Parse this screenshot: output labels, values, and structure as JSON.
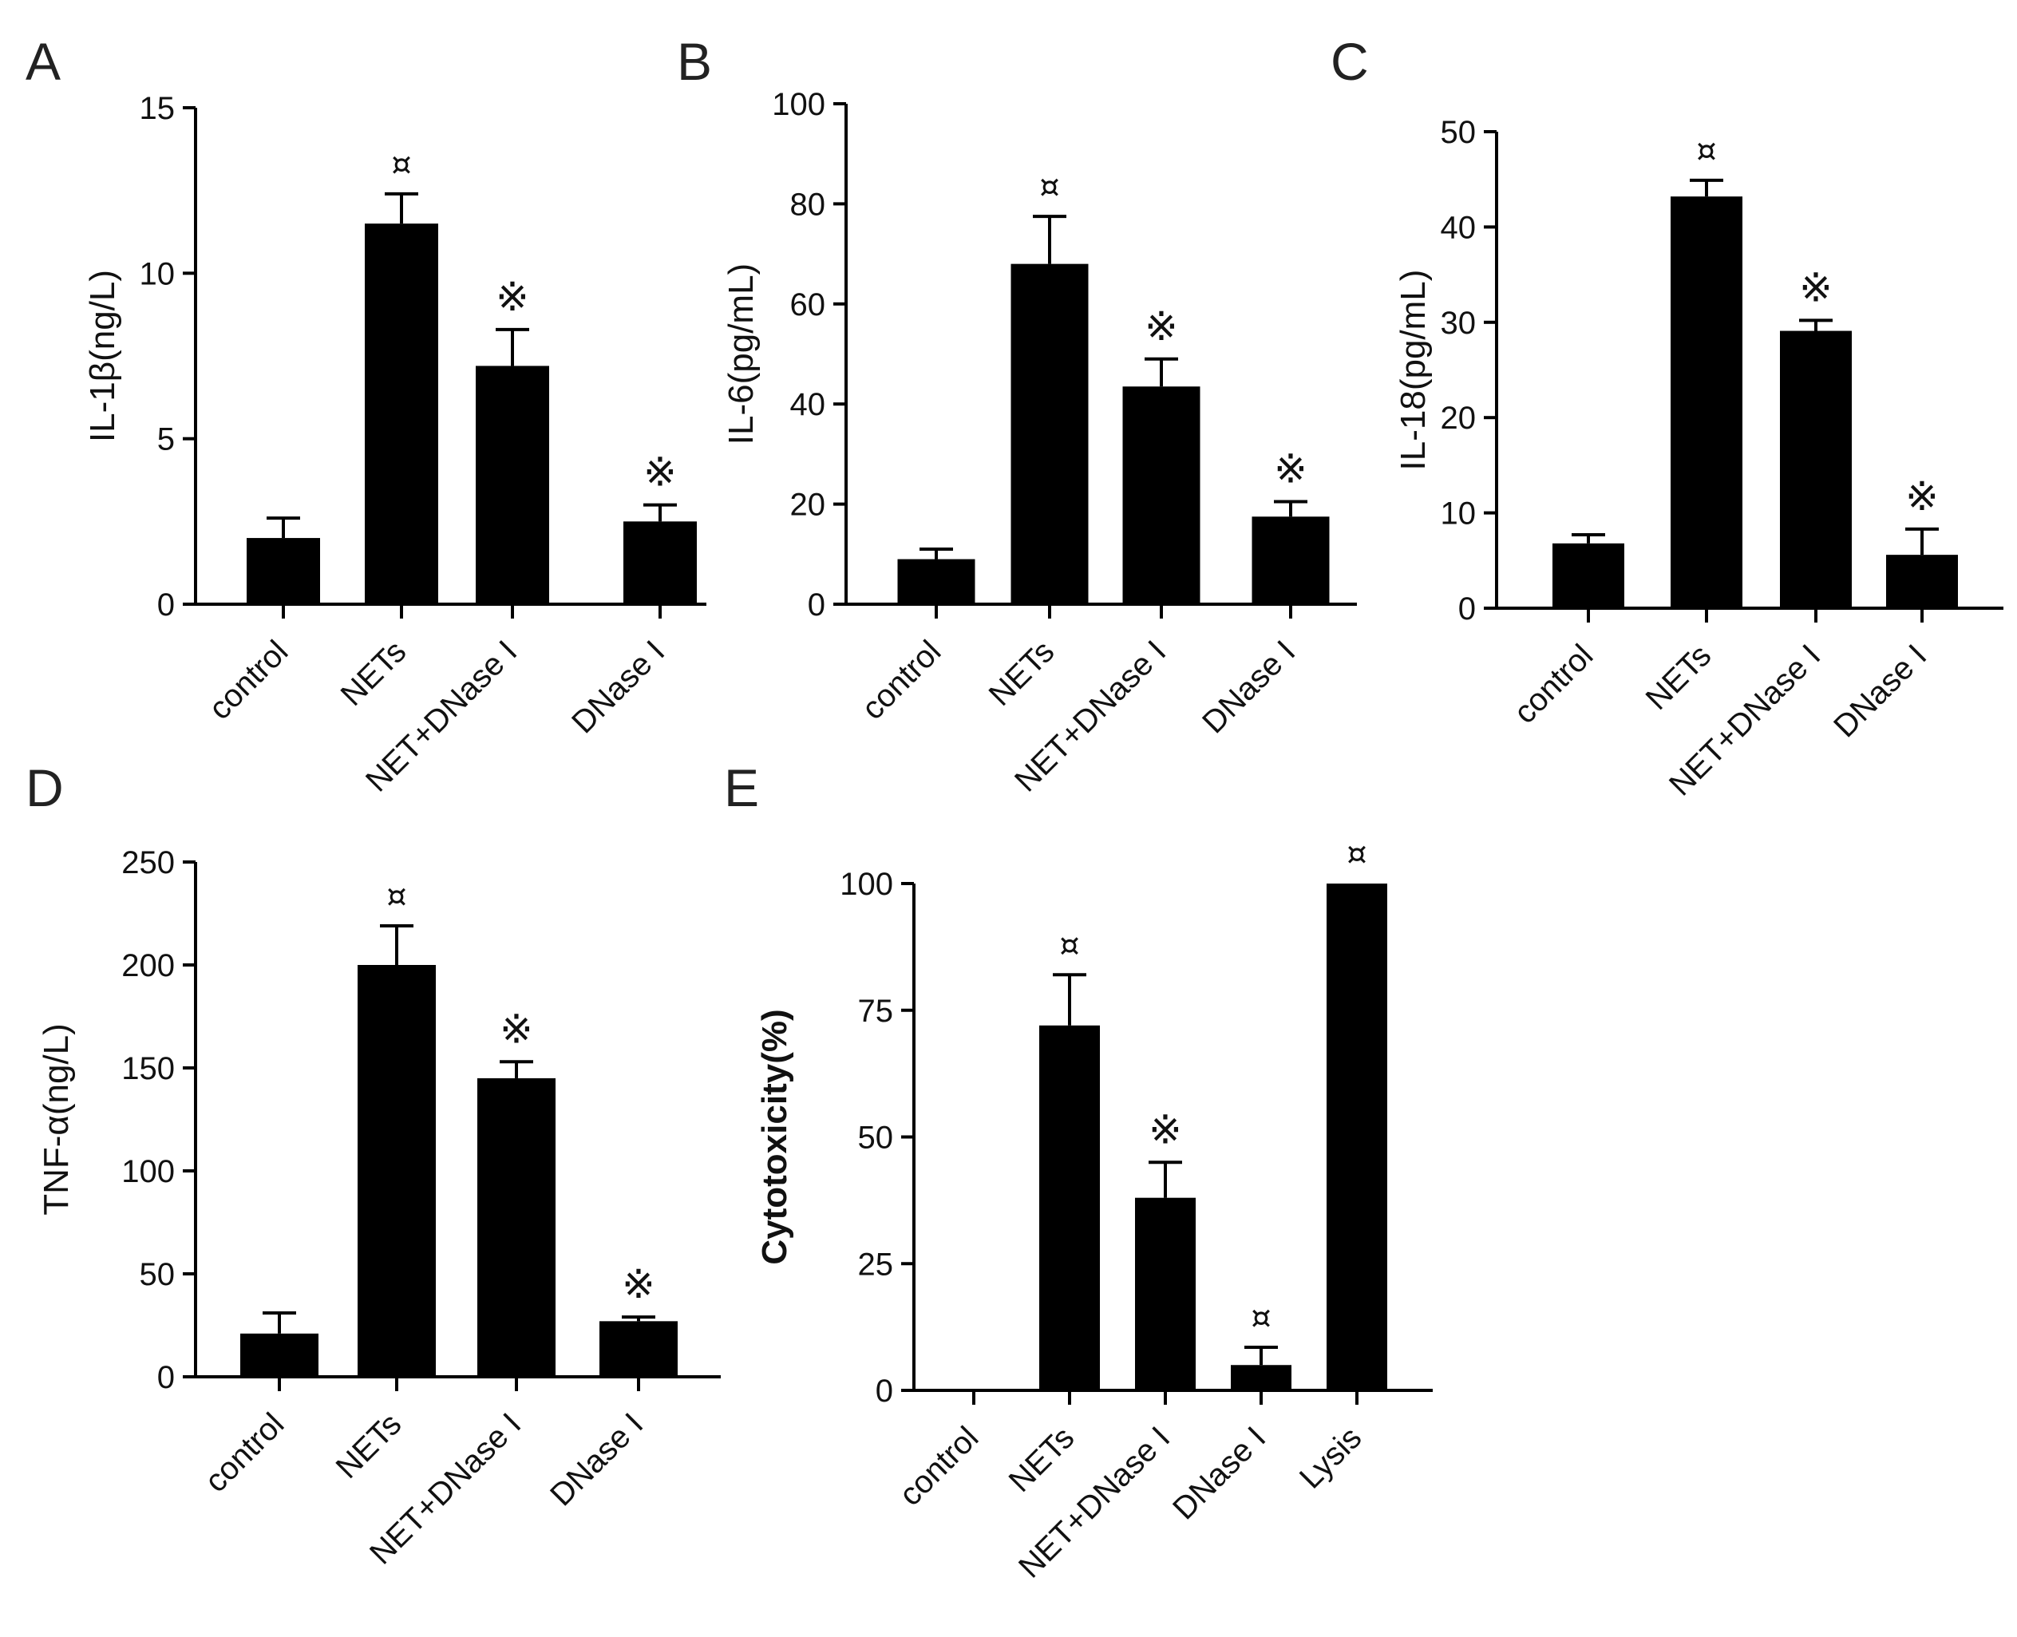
{
  "chart_data": [
    {
      "panel": "A",
      "type": "bar",
      "categories": [
        "control",
        "NETs",
        "NET+DNase I",
        "DNase I"
      ],
      "values": [
        2.0,
        11.5,
        7.2,
        2.5
      ],
      "errors": [
        0.6,
        0.9,
        1.1,
        0.5
      ],
      "markers": [
        "",
        "¤",
        "※",
        "※"
      ],
      "ylabel": "IL-1β(ng/L)",
      "ylabel_bold": false,
      "ylim": [
        0,
        15
      ],
      "yticks": [
        0,
        5,
        10,
        15
      ],
      "ytick_labels": [
        "0",
        "5",
        "10",
        "15"
      ]
    },
    {
      "panel": "B",
      "type": "bar",
      "categories": [
        "control",
        "NETs",
        "NET+DNase I",
        "DNase I"
      ],
      "values": [
        9,
        68,
        43.5,
        17.5
      ],
      "errors": [
        2,
        9.5,
        5.5,
        3
      ],
      "markers": [
        "",
        "¤",
        "※",
        "※"
      ],
      "ylabel": "IL-6(pg/mL)",
      "ylabel_bold": false,
      "ylim": [
        0,
        100
      ],
      "yticks": [
        0,
        20,
        40,
        60,
        80,
        100
      ],
      "ytick_labels": [
        "0",
        "20",
        "40",
        "60",
        "80",
        "100"
      ]
    },
    {
      "panel": "C",
      "type": "bar",
      "categories": [
        "control",
        "NETs",
        "NET+DNase I",
        "DNase I"
      ],
      "values": [
        6.8,
        43.2,
        29.1,
        5.6
      ],
      "errors": [
        0.9,
        1.7,
        1.1,
        2.7
      ],
      "markers": [
        "",
        "¤",
        "※",
        "※"
      ],
      "ylabel": "IL-18(pg/mL)",
      "ylabel_bold": false,
      "ylim": [
        0,
        50
      ],
      "yticks": [
        0,
        10,
        20,
        30,
        40,
        50
      ],
      "ytick_labels": [
        "0",
        "10",
        "20",
        "30",
        "40",
        "50"
      ]
    },
    {
      "panel": "D",
      "type": "bar",
      "categories": [
        "control",
        "NETs",
        "NET+DNase I",
        "DNase I"
      ],
      "values": [
        21,
        200,
        145,
        27
      ],
      "errors": [
        10,
        19,
        8,
        2
      ],
      "markers": [
        "",
        "¤",
        "※",
        "※"
      ],
      "ylabel": "TNF-α(ng/L)",
      "ylabel_bold": false,
      "ylim": [
        0,
        250
      ],
      "yticks": [
        0,
        50,
        100,
        150,
        200,
        250
      ],
      "ytick_labels": [
        "0",
        "50",
        "100",
        "150",
        "200",
        "250"
      ]
    },
    {
      "panel": "E",
      "type": "bar",
      "categories": [
        "control",
        "NETs",
        "NET+DNase I",
        "DNase I",
        "Lysis"
      ],
      "values": [
        0,
        72,
        38,
        5,
        100
      ],
      "errors": [
        0,
        10,
        7,
        3.5,
        0
      ],
      "markers": [
        "",
        "¤",
        "※",
        "¤",
        "¤"
      ],
      "ylabel": "Cytotoxicity(%)",
      "ylabel_bold": true,
      "ylim": [
        0,
        100
      ],
      "yticks": [
        0,
        25,
        50,
        75,
        100
      ],
      "ytick_labels": [
        "0",
        "25",
        "50",
        "75",
        "100"
      ]
    }
  ]
}
